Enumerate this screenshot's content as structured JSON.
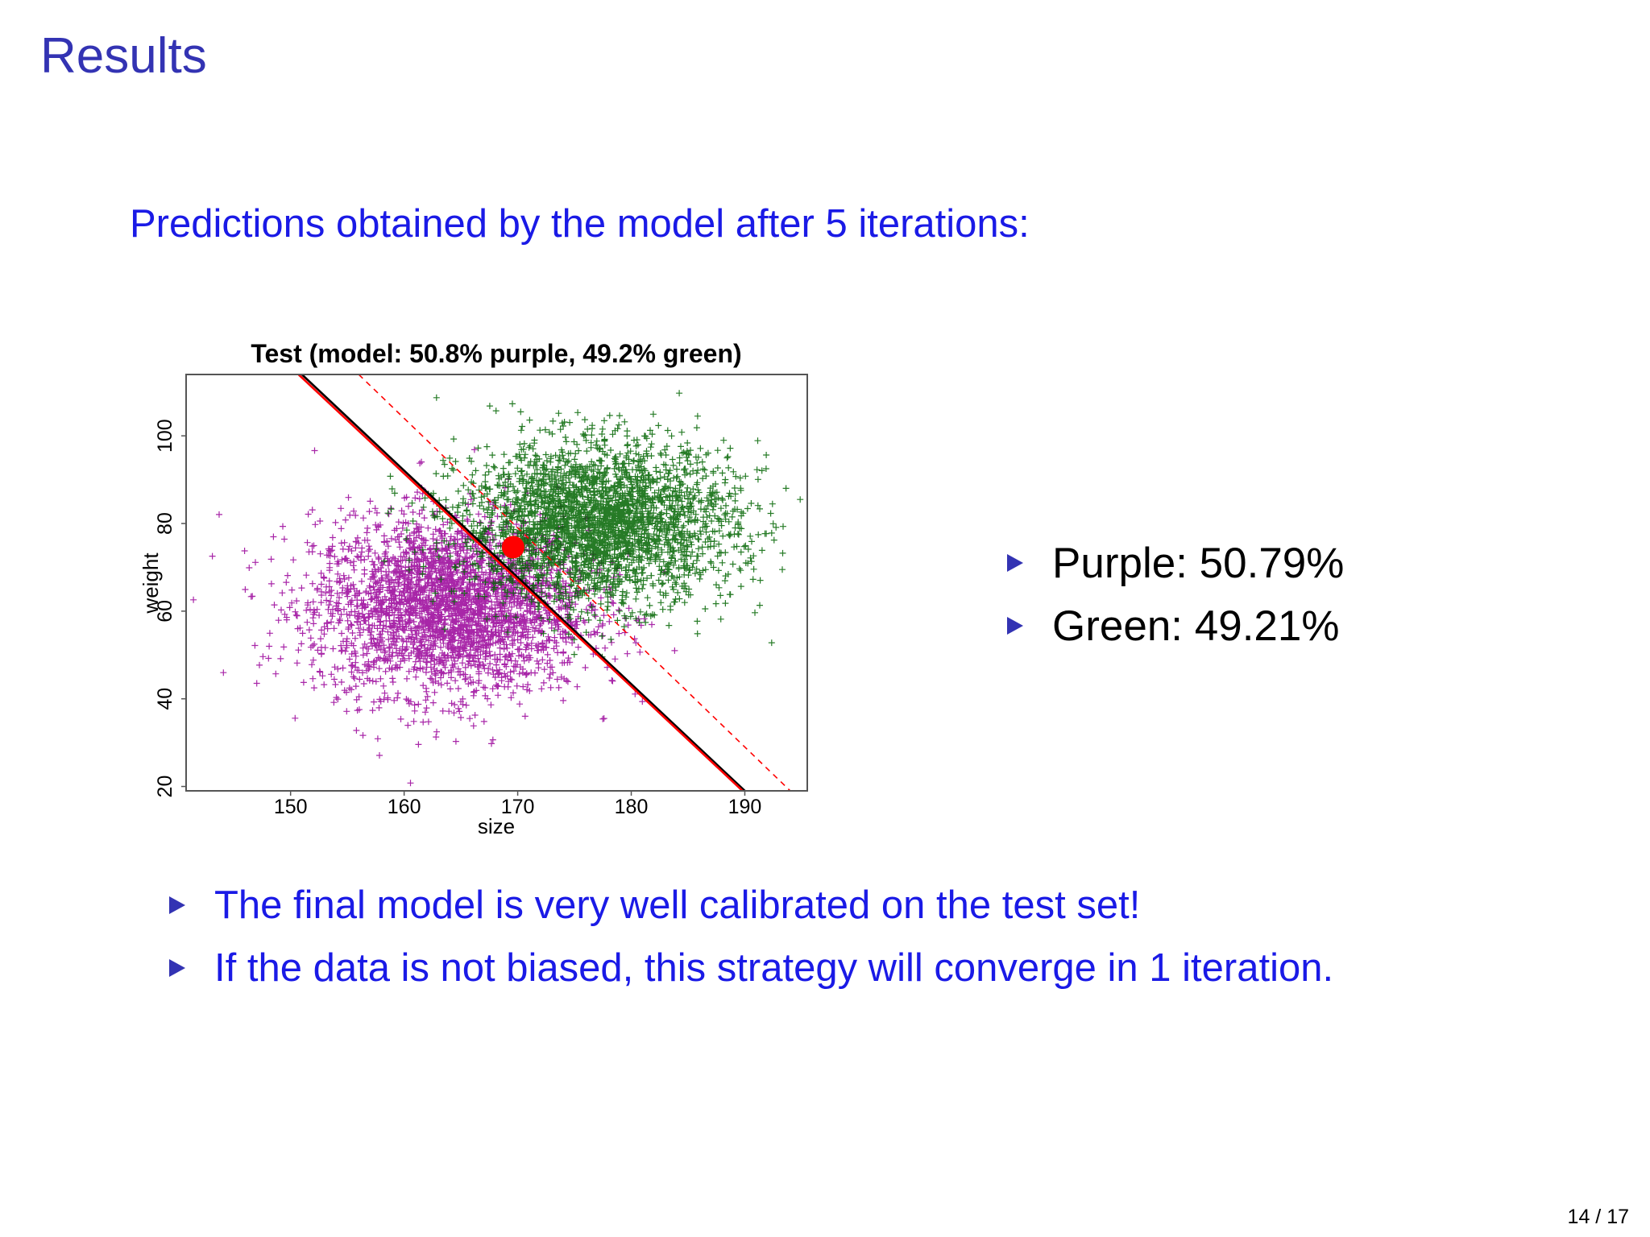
{
  "slide": {
    "title": "Results",
    "intro": "Predictions obtained by the model after 5 iterations:",
    "model_results": [
      {
        "label": "Purple: 50.79%"
      },
      {
        "label": "Green: 49.21%"
      }
    ],
    "conclusions": [
      "The final model is very well calibrated on the test set!",
      "If the data is not biased, this strategy will converge in 1 iteration."
    ],
    "page_number": "14 / 17"
  },
  "chart_data": {
    "type": "scatter",
    "title": "Test (model: 50.8% purple, 49.2% green)",
    "xlabel": "size",
    "ylabel": "weight",
    "xlim": [
      140.8,
      195.5
    ],
    "ylim": [
      19,
      114
    ],
    "x_ticks": [
      150,
      160,
      170,
      180,
      190
    ],
    "y_ticks": [
      20,
      40,
      60,
      80,
      100
    ],
    "grid": false,
    "colors": {
      "purple": "#990099",
      "green": "#006400",
      "red": "#ff0000",
      "black": "#000000"
    },
    "series": [
      {
        "name": "purple",
        "color": "#990099",
        "marker": "+",
        "center": [
          164,
          61
        ],
        "sd": [
          6,
          10
        ],
        "count": 3000
      },
      {
        "name": "green",
        "color": "#006400",
        "marker": "+",
        "center": [
          177,
          80
        ],
        "sd": [
          6,
          9
        ],
        "count": 3000
      }
    ],
    "highlight_point": {
      "x": 169.6,
      "y": 74.6,
      "color": "#ff0000"
    },
    "lines": [
      {
        "from": [
          151,
          114
        ],
        "to": [
          190,
          19
        ],
        "color": "#000000",
        "style": "solid"
      },
      {
        "from": [
          150.7,
          114
        ],
        "to": [
          189.8,
          19
        ],
        "color": "#ff0000",
        "style": "solid"
      },
      {
        "from": [
          156,
          114
        ],
        "to": [
          194,
          19
        ],
        "color": "#ff0000",
        "style": "dashed"
      }
    ]
  }
}
